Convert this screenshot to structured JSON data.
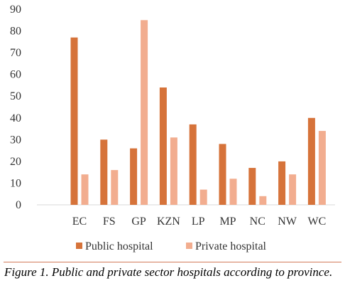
{
  "chart_data": {
    "type": "bar",
    "categories": [
      "EC",
      "FS",
      "GP",
      "KZN",
      "LP",
      "MP",
      "NC",
      "NW",
      "WC"
    ],
    "series": [
      {
        "name": "Public hospital",
        "color": "#d6733a",
        "values": [
          77,
          30,
          26,
          54,
          37,
          28,
          17,
          20,
          40
        ]
      },
      {
        "name": "Private hospital",
        "color": "#f2ad8f",
        "values": [
          14,
          16,
          85,
          31,
          7,
          12,
          4,
          14,
          34
        ]
      }
    ],
    "title": "",
    "xlabel": "",
    "ylabel": "",
    "ylim": [
      0,
      90
    ],
    "yticks": [
      0,
      10,
      20,
      30,
      40,
      50,
      60,
      70,
      80,
      90
    ],
    "grid": false,
    "legend_position": "bottom"
  },
  "caption": "Figure 1. Public and private sector hospitals according to province."
}
